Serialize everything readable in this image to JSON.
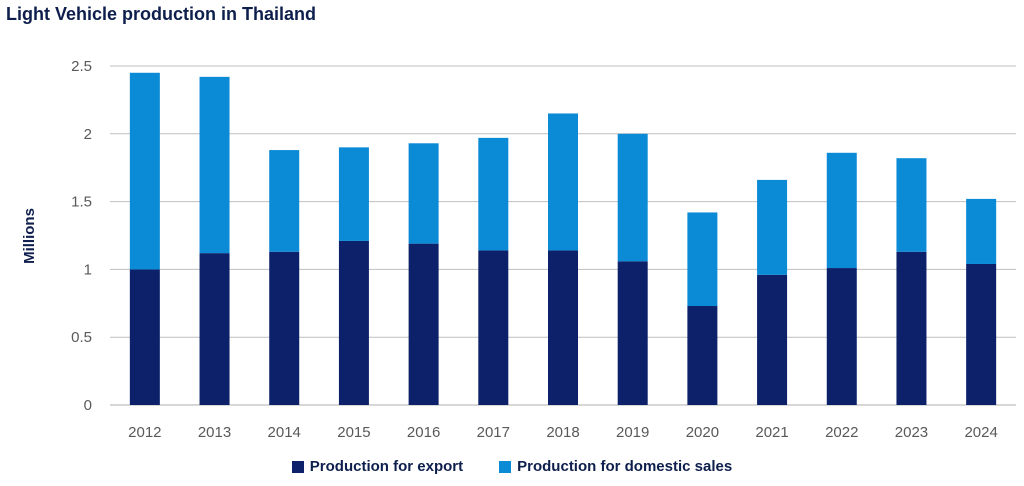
{
  "title": "Light Vehicle production in Thailand",
  "colors": {
    "export": "#0c2169",
    "domestic": "#0b8ad6",
    "grid": "#bfbfbf",
    "axis_text": "#595959",
    "ylabel": "#0e1f4d"
  },
  "chart_data": {
    "type": "bar",
    "stacked": true,
    "categories": [
      "2012",
      "2013",
      "2014",
      "2015",
      "2016",
      "2017",
      "2018",
      "2019",
      "2020",
      "2021",
      "2022",
      "2023",
      "2024"
    ],
    "series": [
      {
        "name": "Production for export",
        "values": [
          1.0,
          1.12,
          1.13,
          1.21,
          1.19,
          1.14,
          1.14,
          1.06,
          0.73,
          0.96,
          1.01,
          1.13,
          1.04
        ]
      },
      {
        "name": "Production for domestic sales",
        "values": [
          1.45,
          1.3,
          0.75,
          0.69,
          0.74,
          0.83,
          1.01,
          0.94,
          0.69,
          0.7,
          0.85,
          0.69,
          0.48
        ]
      }
    ],
    "title": "Light Vehicle production in Thailand",
    "xlabel": "",
    "ylabel": "Millions",
    "ylim": [
      0,
      2.5
    ],
    "yticks": [
      "0",
      "0.5",
      "1",
      "1.5",
      "2",
      "2.5"
    ],
    "ytick_values": [
      0,
      0.5,
      1,
      1.5,
      2,
      2.5
    ],
    "grid": true,
    "legend_position": "bottom"
  }
}
